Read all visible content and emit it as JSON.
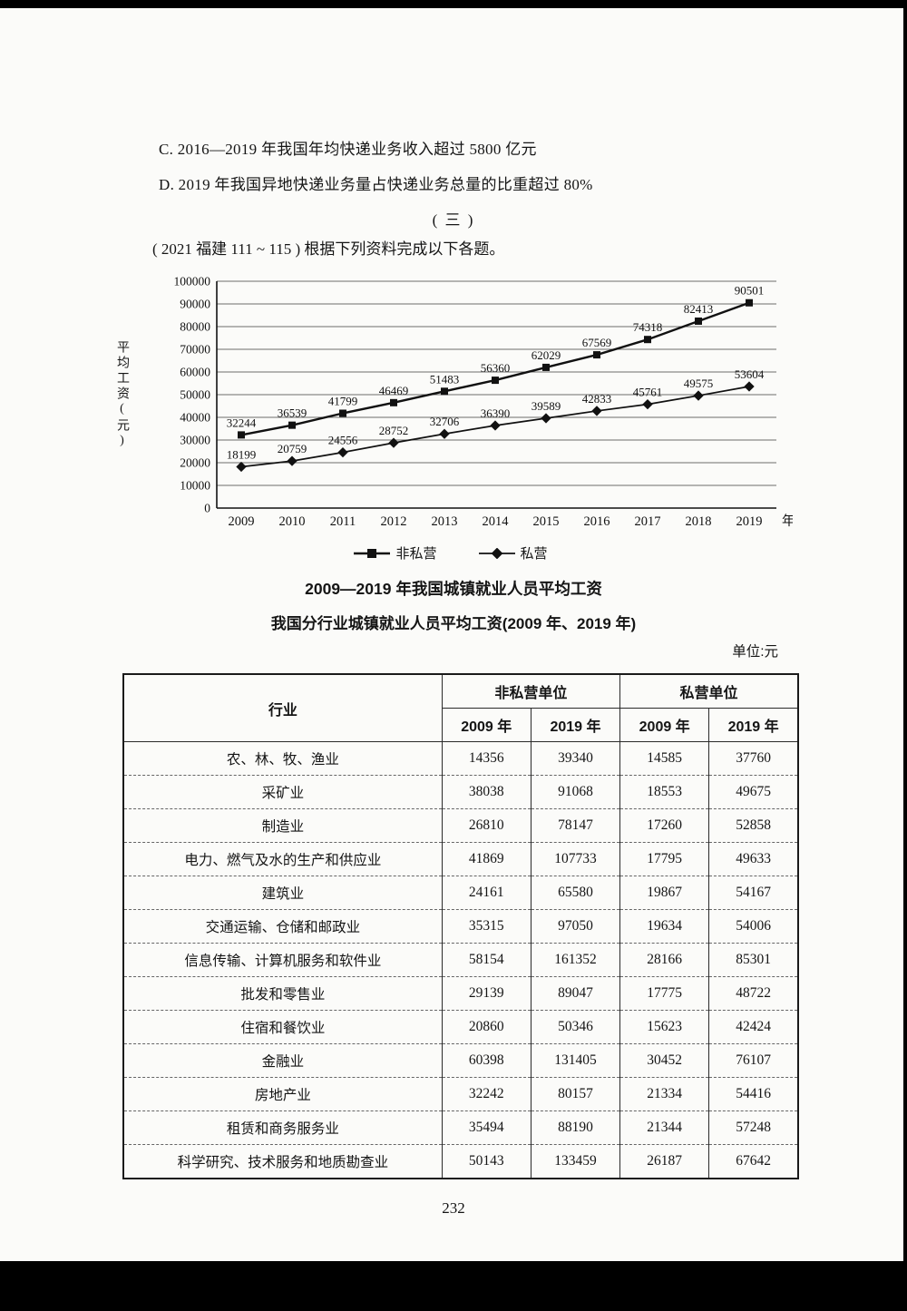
{
  "page": {
    "option_c": "C. 2016—2019 年我国年均快递业务收入超过 5800 亿元",
    "option_d": "D. 2019 年我国异地快递业务量占快递业务总量的比重超过 80%",
    "section": "( 三 )",
    "source_line": "( 2021 福建 111 ~ 115 ) 根据下列资料完成以下各题。",
    "page_number": "232"
  },
  "chart_data": {
    "type": "line",
    "title": "2009—2019 年我国城镇就业人员平均工资",
    "ylabel": "平均工资(元)",
    "x_suffix": "年",
    "x": [
      "2009",
      "2010",
      "2011",
      "2012",
      "2013",
      "2014",
      "2015",
      "2016",
      "2017",
      "2018",
      "2019"
    ],
    "ylim": [
      0,
      100000
    ],
    "ytick_step": 10000,
    "grid": "horizontal",
    "legend_position": "bottom",
    "series": [
      {
        "name": "非私营",
        "marker": "square",
        "values": [
          32244,
          36539,
          41799,
          46469,
          51483,
          56360,
          62029,
          67569,
          74318,
          82413,
          90501
        ]
      },
      {
        "name": "私营",
        "marker": "diamond",
        "values": [
          18199,
          20759,
          24556,
          28752,
          32706,
          36390,
          39589,
          42833,
          45761,
          49575,
          53604
        ]
      }
    ]
  },
  "table": {
    "title": "我国分行业城镇就业人员平均工资(2009 年、2019 年)",
    "unit": "单位:元",
    "col_industry": "行业",
    "group_headers": [
      "非私营单位",
      "私营单位"
    ],
    "year_headers": [
      "2009 年",
      "2019 年",
      "2009 年",
      "2019 年"
    ],
    "rows": [
      {
        "industry": "农、林、牧、渔业",
        "values": [
          14356,
          39340,
          14585,
          37760
        ]
      },
      {
        "industry": "采矿业",
        "values": [
          38038,
          91068,
          18553,
          49675
        ]
      },
      {
        "industry": "制造业",
        "values": [
          26810,
          78147,
          17260,
          52858
        ]
      },
      {
        "industry": "电力、燃气及水的生产和供应业",
        "values": [
          41869,
          107733,
          17795,
          49633
        ]
      },
      {
        "industry": "建筑业",
        "values": [
          24161,
          65580,
          19867,
          54167
        ]
      },
      {
        "industry": "交通运输、仓储和邮政业",
        "values": [
          35315,
          97050,
          19634,
          54006
        ]
      },
      {
        "industry": "信息传输、计算机服务和软件业",
        "values": [
          58154,
          161352,
          28166,
          85301
        ]
      },
      {
        "industry": "批发和零售业",
        "values": [
          29139,
          89047,
          17775,
          48722
        ]
      },
      {
        "industry": "住宿和餐饮业",
        "values": [
          20860,
          50346,
          15623,
          42424
        ]
      },
      {
        "industry": "金融业",
        "values": [
          60398,
          131405,
          30452,
          76107
        ]
      },
      {
        "industry": "房地产业",
        "values": [
          32242,
          80157,
          21334,
          54416
        ]
      },
      {
        "industry": "租赁和商务服务业",
        "values": [
          35494,
          88190,
          21344,
          57248
        ]
      },
      {
        "industry": "科学研究、技术服务和地质勘查业",
        "values": [
          50143,
          133459,
          26187,
          67642
        ]
      }
    ]
  }
}
